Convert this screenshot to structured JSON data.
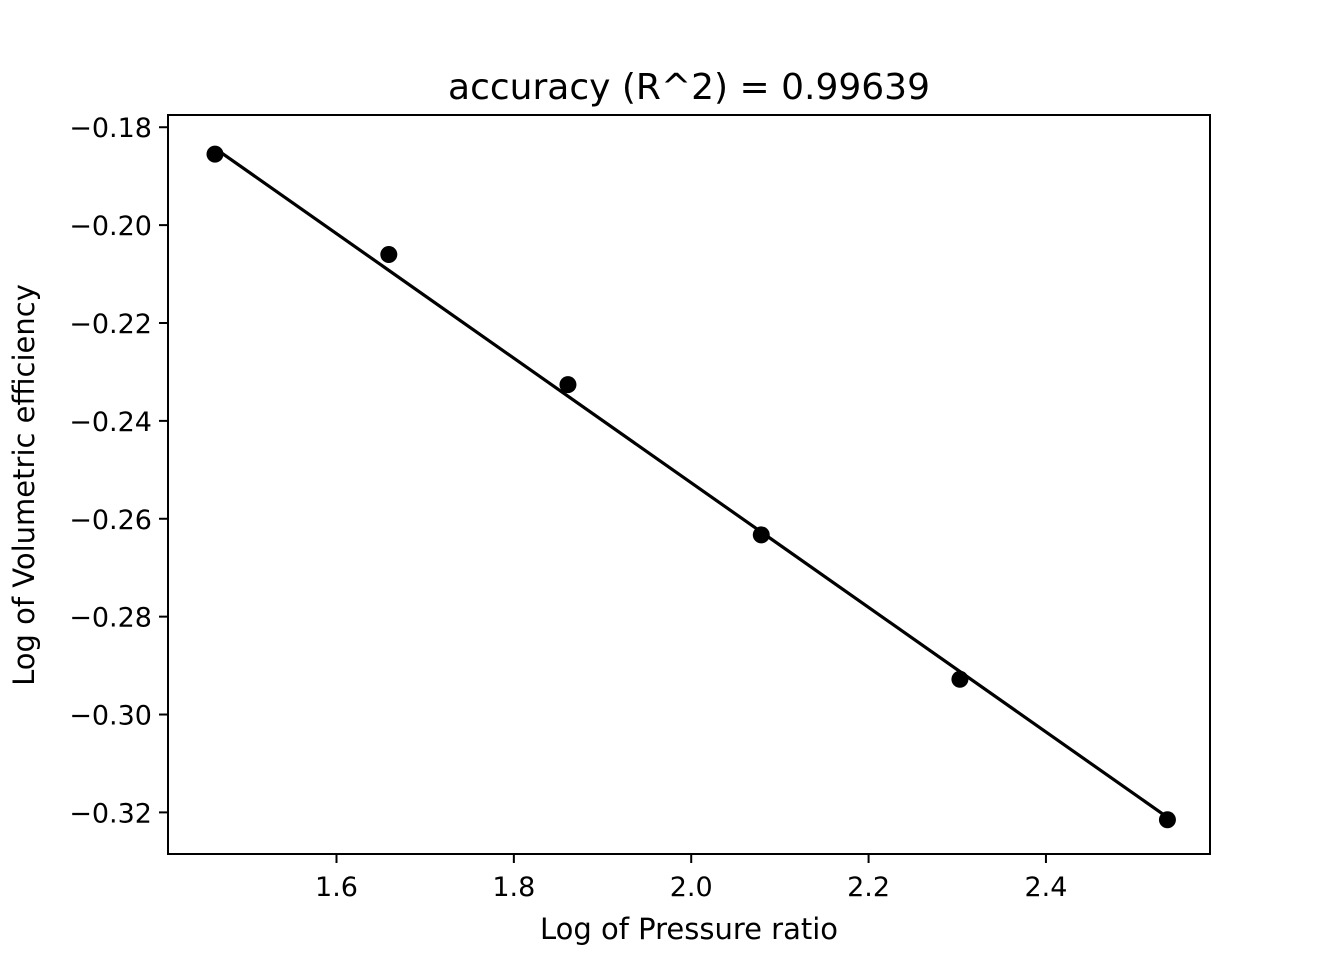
{
  "chart_data": {
    "type": "scatter",
    "title": "accuracy (R^2) =  0.99639",
    "xlabel": "Log of Pressure ratio",
    "ylabel": "Log of Volumetric efficiency",
    "xlim": [
      1.41,
      2.585
    ],
    "ylim": [
      -0.3285,
      -0.1775
    ],
    "xticks": [
      1.6,
      1.8,
      2.0,
      2.2,
      2.4
    ],
    "xtick_labels": [
      "1.6",
      "1.8",
      "2.0",
      "2.2",
      "2.4"
    ],
    "yticks": [
      -0.18,
      -0.2,
      -0.22,
      -0.24,
      -0.26,
      -0.28,
      -0.3,
      -0.32
    ],
    "ytick_labels": [
      "−0.18",
      "−0.20",
      "−0.22",
      "−0.24",
      "−0.26",
      "−0.28",
      "−0.30",
      "−0.32"
    ],
    "grid": false,
    "series": [
      {
        "type": "scatter",
        "color": "#000000",
        "points": [
          {
            "x": 1.463,
            "y": -0.1855
          },
          {
            "x": 1.659,
            "y": -0.206
          },
          {
            "x": 1.861,
            "y": -0.2326
          },
          {
            "x": 2.079,
            "y": -0.2633
          },
          {
            "x": 2.303,
            "y": -0.2928
          },
          {
            "x": 2.537,
            "y": -0.3215
          }
        ]
      },
      {
        "type": "line",
        "color": "#000000",
        "points": [
          {
            "x": 1.463,
            "y": -0.1843
          },
          {
            "x": 2.537,
            "y": -0.321
          }
        ]
      }
    ]
  }
}
